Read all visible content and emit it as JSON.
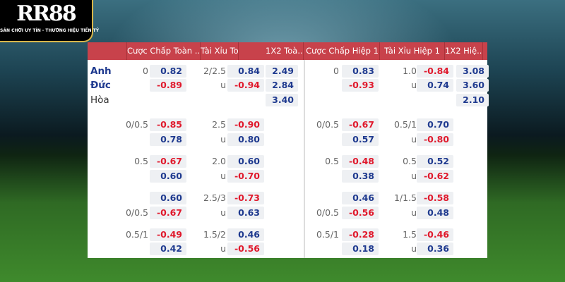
{
  "logo": {
    "text": "RR88",
    "tagline": "SÂN CHƠI UY TÍN - THƯƠNG HIỆU TIỀN TỶ"
  },
  "headers": [
    "",
    "Cược Chấp Toàn ...",
    "Tài Xỉu Toàn Trận",
    "1X2 Toà...",
    "Cược Chấp Hiệp 1",
    "Tài Xỉu Hiệp 1",
    "1X2 Hiệ..."
  ],
  "colors": {
    "header": "#c8424b",
    "positive": "#1f3a8f",
    "negative": "#e0192c"
  },
  "rows": [
    {
      "team": "Anh",
      "cells": [
        "0",
        "0.82",
        "2/2.5",
        "0.84",
        "2.49",
        "0",
        "0.83",
        "1.0",
        "-0.84",
        "3.08"
      ]
    },
    {
      "team": "Đức",
      "cells": [
        "",
        "-0.89",
        "u",
        "-0.94",
        "2.84",
        "",
        "-0.93",
        "u",
        "0.74",
        "3.60"
      ]
    },
    {
      "team": "Hòa",
      "cells": [
        "",
        "",
        "",
        "",
        "3.40",
        "",
        "",
        "",
        "",
        "2.10"
      ]
    },
    {
      "team": "",
      "cells": [
        "0/0.5",
        "-0.85",
        "2.5",
        "-0.90",
        "",
        "0/0.5",
        "-0.67",
        "0.5/1",
        "0.70",
        ""
      ]
    },
    {
      "team": "",
      "cells": [
        "",
        "0.78",
        "u",
        "0.80",
        "",
        "",
        "0.57",
        "u",
        "-0.80",
        ""
      ]
    },
    {
      "team": "",
      "cells": [
        "0.5",
        "-0.67",
        "2.0",
        "0.60",
        "",
        "0.5",
        "-0.48",
        "0.5",
        "0.52",
        ""
      ]
    },
    {
      "team": "",
      "cells": [
        "",
        "0.60",
        "u",
        "-0.70",
        "",
        "",
        "0.38",
        "u",
        "-0.62",
        ""
      ]
    },
    {
      "team": "",
      "cells": [
        "",
        "0.60",
        "2.5/3",
        "-0.73",
        "",
        "",
        "0.46",
        "1/1.5",
        "-0.58",
        ""
      ]
    },
    {
      "team": "",
      "cells": [
        "0/0.5",
        "-0.67",
        "u",
        "0.63",
        "",
        "0/0.5",
        "-0.56",
        "u",
        "0.48",
        ""
      ]
    },
    {
      "team": "",
      "cells": [
        "0.5/1",
        "-0.49",
        "1.5/2",
        "0.46",
        "",
        "0.5/1",
        "-0.28",
        "1.5",
        "-0.46",
        ""
      ]
    },
    {
      "team": "",
      "cells": [
        "",
        "0.42",
        "u",
        "-0.56",
        "",
        "",
        "0.18",
        "u",
        "0.36",
        ""
      ]
    }
  ]
}
